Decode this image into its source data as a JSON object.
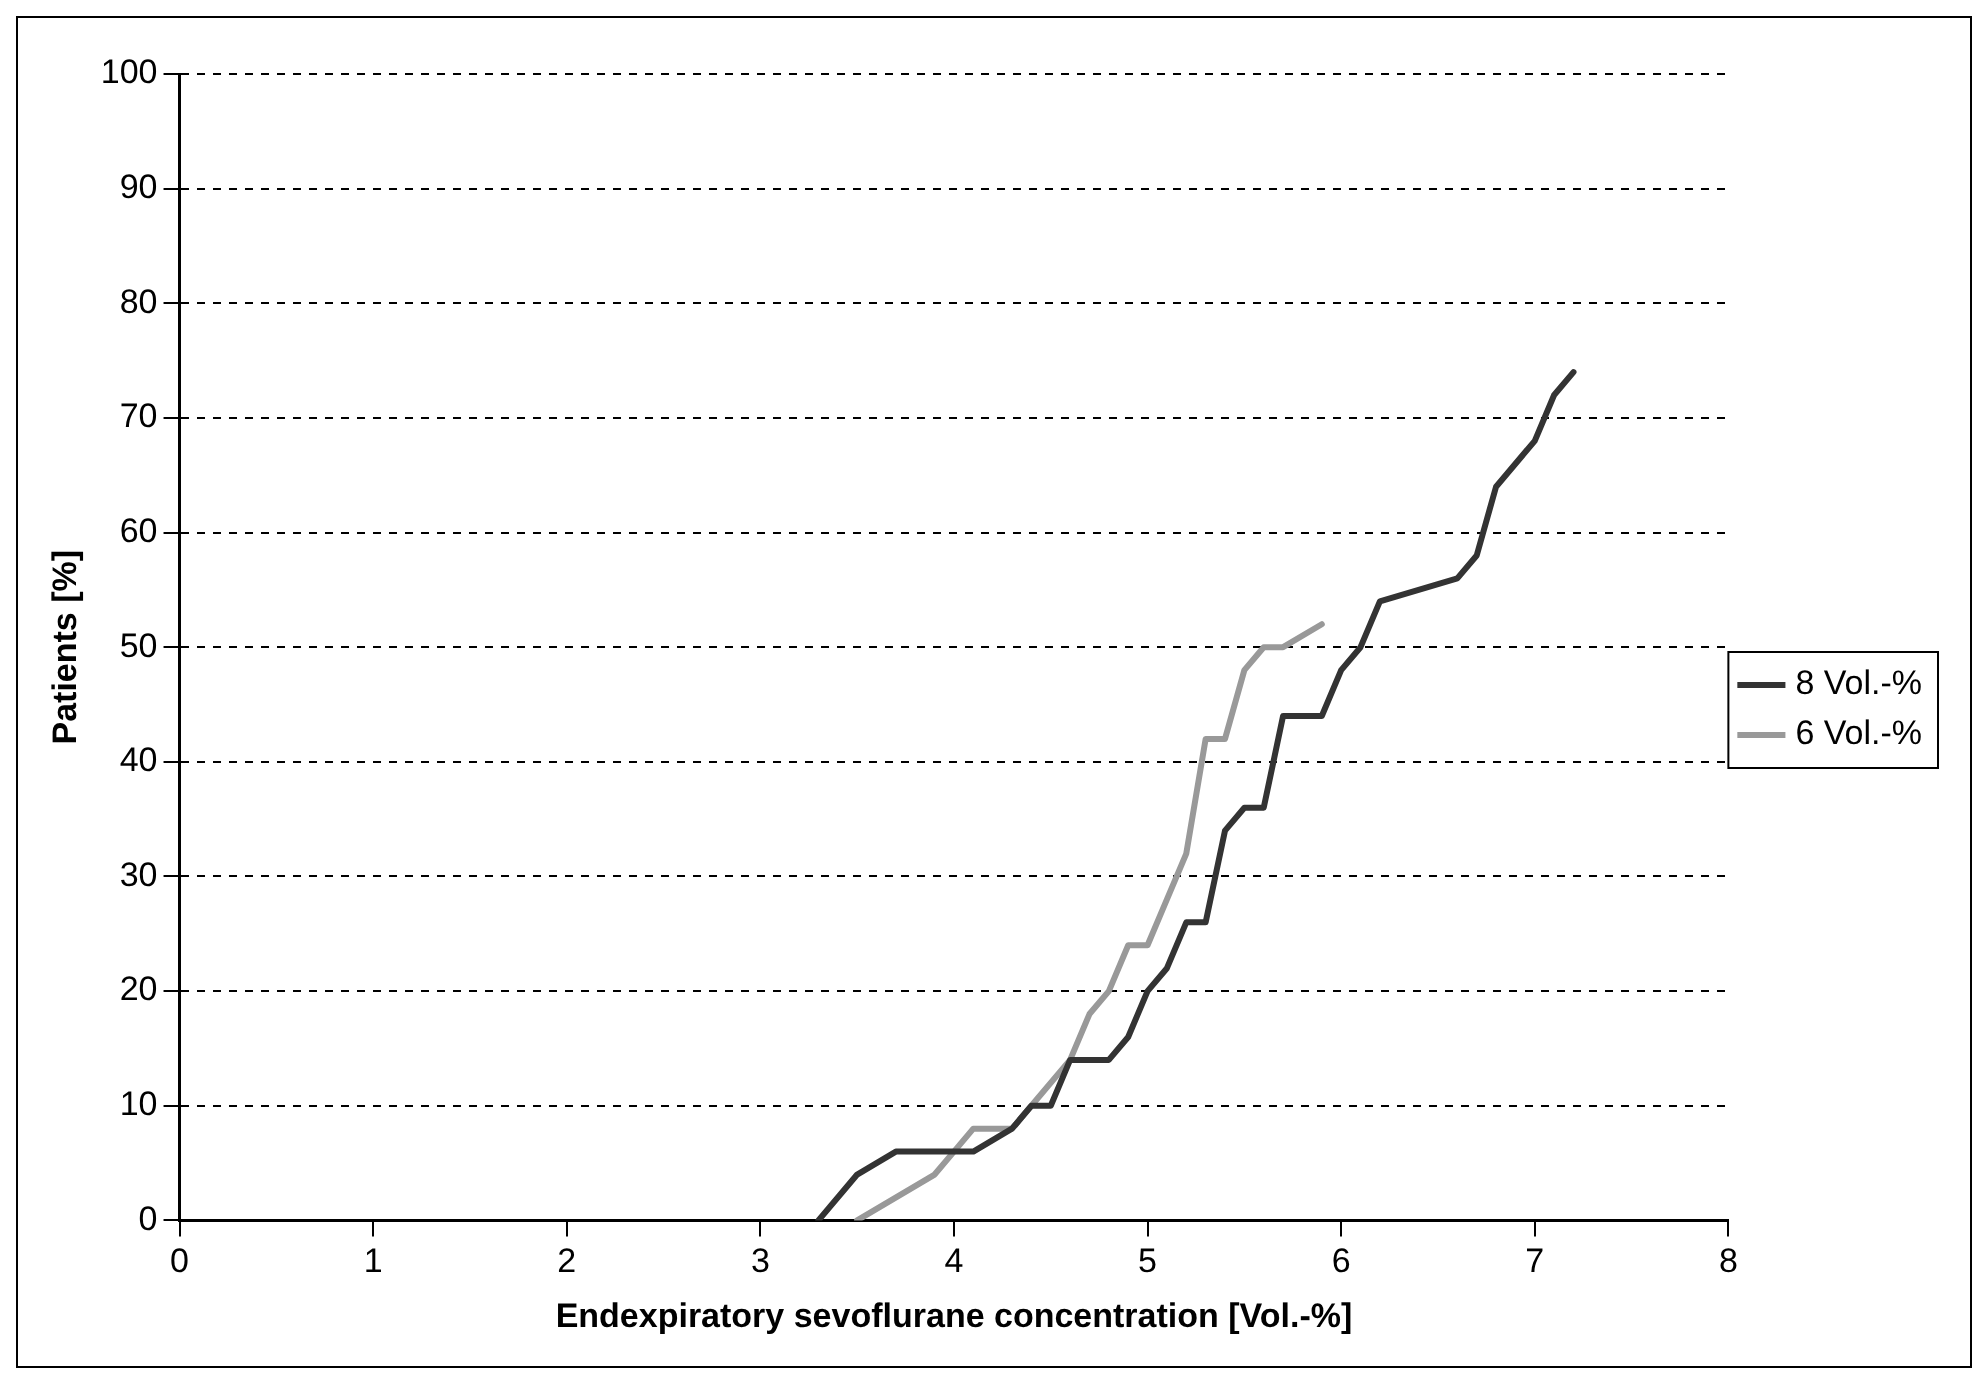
{
  "chart_data": {
    "type": "line",
    "xlabel": "Endexpiratory sevoflurane concentration [Vol.-%]",
    "ylabel": "Patients [%]",
    "xlim": [
      0,
      8
    ],
    "xticks": [
      0,
      1,
      2,
      3,
      4,
      5,
      6,
      7,
      8
    ],
    "ylim": [
      0,
      100
    ],
    "yticks": [
      0,
      10,
      20,
      30,
      40,
      50,
      60,
      70,
      80,
      90,
      100
    ],
    "grid": "y",
    "legend": "right",
    "marker": "none",
    "line_style": "solid",
    "series": [
      {
        "name": "8 Vol.-%",
        "color": "#333333",
        "x": [
          3.3,
          3.5,
          3.6,
          3.7,
          4.1,
          4.2,
          4.3,
          4.4,
          4.5,
          4.6,
          4.8,
          4.9,
          5.0,
          5.1,
          5.2,
          5.3,
          5.4,
          5.5,
          5.6,
          5.7,
          5.9,
          6.0,
          6.1,
          6.2,
          6.6,
          6.7,
          6.8,
          7.0,
          7.1,
          7.2
        ],
        "values": [
          0,
          4,
          5,
          6,
          6,
          7,
          8,
          10,
          10,
          14,
          14,
          16,
          20,
          22,
          26,
          26,
          34,
          36,
          36,
          44,
          44,
          48,
          50,
          54,
          56,
          58,
          64,
          68,
          72,
          74
        ]
      },
      {
        "name": "6 Vol.-%",
        "color": "#999999",
        "x": [
          3.5,
          3.9,
          4.0,
          4.1,
          4.3,
          4.4,
          4.6,
          4.7,
          4.8,
          4.9,
          5.0,
          5.1,
          5.2,
          5.3,
          5.4,
          5.5,
          5.6,
          5.7,
          5.9
        ],
        "values": [
          0,
          4,
          6,
          8,
          8,
          10,
          14,
          18,
          20,
          24,
          24,
          28,
          32,
          42,
          42,
          48,
          50,
          50,
          52
        ]
      }
    ]
  }
}
